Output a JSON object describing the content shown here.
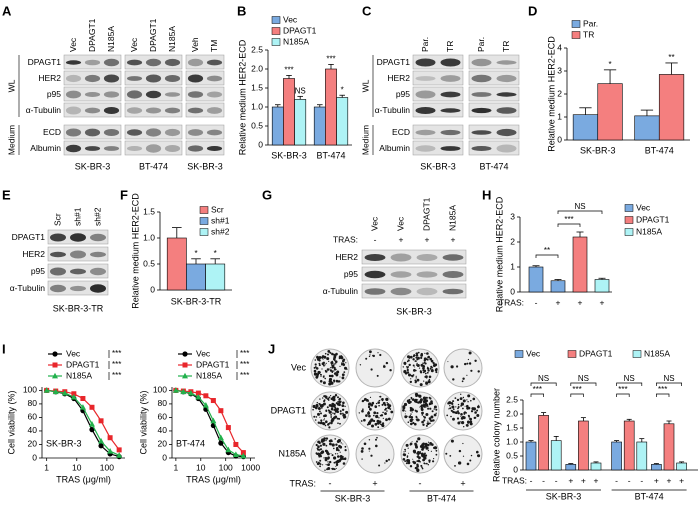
{
  "panel_labels": [
    "A",
    "B",
    "C",
    "D",
    "E",
    "F",
    "G",
    "H",
    "I",
    "J"
  ],
  "blots": [
    {
      "columns": [
        "Vec",
        "DPAGT1",
        "N185A",
        "Vec",
        "DPAGT1",
        "N185A",
        "Veh",
        "TM"
      ],
      "rows": [
        "DPAGT1",
        "HER2",
        "p95",
        "α-Tubulin",
        "ECD",
        "Albumin"
      ],
      "sections": [
        "WL",
        "Medium"
      ],
      "groups": [
        "SK-BR-3",
        "BT-474",
        "SK-BR-3"
      ]
    },
    {
      "columns": [
        "Par.",
        "TR",
        "Par.",
        "TR"
      ],
      "rows": [
        "DPAGT1",
        "HER2",
        "p95",
        "α-Tubulin",
        "ECD",
        "Albumin"
      ],
      "sections": [
        "WL",
        "Medium"
      ],
      "groups": [
        "SK-BR-3",
        "BT-474"
      ]
    },
    {
      "columns": [
        "Scr",
        "sh#1",
        "sh#2"
      ],
      "rows": [
        "DPAGT1",
        "HER2",
        "p95",
        "α-Tubulin"
      ],
      "groups": [
        "SK-BR-3-TR"
      ]
    },
    {
      "columns": [
        "Vec",
        "Vec",
        "DPAGT1",
        "N185A"
      ],
      "treatment_label": "TRAS:",
      "treatment": [
        "-",
        "+",
        "+",
        "+"
      ],
      "rows": [
        "HER2",
        "p95",
        "α-Tubulin"
      ],
      "groups": [
        "SK-BR-3"
      ]
    }
  ],
  "colony_plates": {
    "rows": [
      "Vec",
      "DPAGT1",
      "N185A"
    ],
    "treatment_label": "TRAS:",
    "treatment": [
      "-",
      "+",
      "-",
      "+"
    ],
    "groups": [
      "SK-BR-3",
      "BT-474"
    ]
  },
  "chart_data": [
    {
      "type": "bar",
      "ylabel": "Relative medium HER2-ECD",
      "categories": [
        "SK-BR-3",
        "BT-474"
      ],
      "series": [
        {
          "name": "Vec",
          "color": "#7aaae0",
          "values": [
            1.0,
            1.0
          ],
          "errors": [
            0.06,
            0.06
          ]
        },
        {
          "name": "DPAGT1",
          "color": "#f47f7f",
          "values": [
            1.75,
            2.0
          ],
          "errors": [
            0.08,
            0.12
          ]
        },
        {
          "name": "N185A",
          "color": "#aef3f5",
          "values": [
            1.2,
            1.25
          ],
          "errors": [
            0.08,
            0.06
          ]
        }
      ],
      "ylim": [
        0,
        2.5
      ],
      "yticks": [
        0,
        0.5,
        {
          "value": 1,
          "label": "1.0"
        },
        1.5,
        {
          "value": 2,
          "label": "2.0"
        },
        2.5
      ],
      "annotations": [
        "***",
        "NS",
        "***",
        "*"
      ]
    },
    {
      "type": "bar",
      "ylabel": "Relative medium HER2-ECD",
      "categories": [
        "SK-BR-3",
        "BT-474"
      ],
      "series": [
        {
          "name": "Par.",
          "color": "#7aaae0",
          "values": [
            1.1,
            1.05
          ],
          "errors": [
            0.3,
            0.25
          ]
        },
        {
          "name": "TR",
          "color": "#f47f7f",
          "values": [
            2.45,
            2.85
          ],
          "errors": [
            0.6,
            0.5
          ]
        }
      ],
      "ylim": [
        0,
        4
      ],
      "yticks": [
        0,
        1,
        2,
        3,
        4
      ],
      "annotations": [
        "*",
        "**"
      ]
    },
    {
      "type": "bar",
      "ylabel": "Relative medium HER2-ECD",
      "categories": [
        "SK-BR-3-TR"
      ],
      "series": [
        {
          "name": "Scr",
          "color": "#f47f7f",
          "values": [
            1.0
          ],
          "errors": [
            0.2
          ]
        },
        {
          "name": "sh#1",
          "color": "#7aaae0",
          "values": [
            0.5
          ],
          "errors": [
            0.1
          ]
        },
        {
          "name": "sh#2",
          "color": "#aef3f5",
          "values": [
            0.5
          ],
          "errors": [
            0.1
          ]
        }
      ],
      "ylim": [
        0,
        1.5
      ],
      "yticks": [
        0,
        0.5,
        {
          "value": 1,
          "label": "1.0"
        },
        1.5
      ],
      "annotations": [
        "*",
        "*"
      ]
    },
    {
      "type": "bar",
      "ylabel": "Relative medium HER2-ECD",
      "xlabel": "TRAS:",
      "categories": [
        "-",
        "+",
        "+",
        "+"
      ],
      "series": [
        {
          "name": "Vec",
          "color": "#7aaae0",
          "values": [
            1.0,
            0.45,
            null,
            null
          ],
          "errors": [
            0.05,
            0.05,
            null,
            null
          ]
        },
        {
          "name": "DPAGT1",
          "color": "#f47f7f",
          "values": [
            null,
            null,
            2.2,
            null
          ],
          "errors": [
            null,
            null,
            0.2,
            null
          ]
        },
        {
          "name": "N185A",
          "color": "#aef3f5",
          "values": [
            null,
            null,
            null,
            0.5
          ],
          "errors": [
            null,
            null,
            null,
            0.05
          ]
        }
      ],
      "ylim": [
        0,
        3
      ],
      "yticks": [
        0,
        1,
        2,
        3
      ],
      "annotations": [
        "**",
        "***",
        "NS"
      ]
    },
    {
      "type": "line",
      "ylabel": "Cell viability (%)",
      "xlabel": "TRAS (μg/ml)",
      "label": "SK-BR-3",
      "xscale": "log",
      "x": [
        1,
        2,
        4,
        8,
        16,
        32,
        64,
        128,
        256
      ],
      "series": [
        {
          "name": "Vec",
          "color": "#000000",
          "marker": "circle",
          "values": [
            100,
            98,
            95,
            88,
            70,
            42,
            18,
            6,
            2
          ]
        },
        {
          "name": "DPAGT1",
          "color": "#e8262b",
          "marker": "square",
          "values": [
            100,
            99,
            98,
            95,
            88,
            75,
            55,
            30,
            12
          ]
        },
        {
          "name": "N185A",
          "color": "#22b14c",
          "marker": "triangle",
          "values": [
            100,
            98,
            96,
            90,
            75,
            50,
            25,
            10,
            4
          ]
        }
      ],
      "xlim": [
        0.7,
        400
      ],
      "xticks": [
        1,
        10,
        100
      ],
      "ylim": [
        0,
        105
      ],
      "yticks": [
        0,
        20,
        40,
        60,
        80,
        100
      ],
      "annotations": [
        "***",
        "***",
        "***"
      ]
    },
    {
      "type": "line",
      "ylabel": "Cell viability (%)",
      "xlabel": "TRAS (μg/ml)",
      "label": "BT-474",
      "xscale": "log",
      "x": [
        1,
        2,
        4,
        8,
        16,
        32,
        64,
        128,
        256,
        512
      ],
      "series": [
        {
          "name": "Vec",
          "color": "#000000",
          "marker": "circle",
          "values": [
            100,
            98,
            95,
            88,
            72,
            48,
            22,
            8,
            3,
            2
          ]
        },
        {
          "name": "DPAGT1",
          "color": "#e8262b",
          "marker": "square",
          "values": [
            100,
            99,
            98,
            96,
            92,
            85,
            70,
            45,
            20,
            8
          ]
        },
        {
          "name": "N185A",
          "color": "#22b14c",
          "marker": "triangle",
          "values": [
            100,
            98,
            96,
            90,
            78,
            55,
            30,
            12,
            5,
            3
          ]
        }
      ],
      "xlim": [
        0.7,
        1500
      ],
      "xticks": [
        1,
        10,
        100,
        1000
      ],
      "ylim": [
        0,
        105
      ],
      "yticks": [
        0,
        20,
        40,
        60,
        80,
        100
      ],
      "annotations": [
        "***",
        "***",
        "***"
      ]
    },
    {
      "type": "bar",
      "ylabel": "Relative colony number",
      "xlabel": "TRAS:",
      "categories": [
        "-",
        "-",
        "-",
        "+",
        "+",
        "+",
        "-",
        "-",
        "-",
        "+",
        "+",
        "+"
      ],
      "groups": [
        "SK-BR-3",
        "BT-474"
      ],
      "series": [
        {
          "name": "Vec",
          "color": "#7aaae0",
          "values": [
            1.0,
            null,
            null,
            0.2,
            null,
            null,
            1.0,
            null,
            null,
            0.2,
            null,
            null
          ],
          "errors": [
            0.05,
            null,
            null,
            0.03,
            null,
            null,
            0.05,
            null,
            null,
            0.03,
            null,
            null
          ]
        },
        {
          "name": "DPAGT1",
          "color": "#f47f7f",
          "values": [
            null,
            1.95,
            null,
            null,
            1.75,
            null,
            null,
            1.75,
            null,
            null,
            1.65,
            null
          ],
          "errors": [
            null,
            0.1,
            null,
            null,
            0.12,
            null,
            null,
            0.06,
            null,
            null,
            0.1,
            null
          ]
        },
        {
          "name": "N185A",
          "color": "#aef3f5",
          "values": [
            null,
            null,
            1.05,
            null,
            null,
            0.25,
            null,
            null,
            1.0,
            null,
            null,
            0.25
          ],
          "errors": [
            null,
            null,
            0.15,
            null,
            null,
            0.04,
            null,
            null,
            0.12,
            null,
            null,
            0.04
          ]
        }
      ],
      "ylim": [
        0,
        2.5
      ],
      "yticks": [
        0,
        0.5,
        {
          "value": 1,
          "label": "1.0"
        },
        1.5,
        {
          "value": 2,
          "label": "2.0"
        },
        2.5
      ],
      "annotations": [
        "NS",
        "***",
        "NS",
        "***",
        "NS",
        "***",
        "NS",
        "***"
      ]
    }
  ]
}
